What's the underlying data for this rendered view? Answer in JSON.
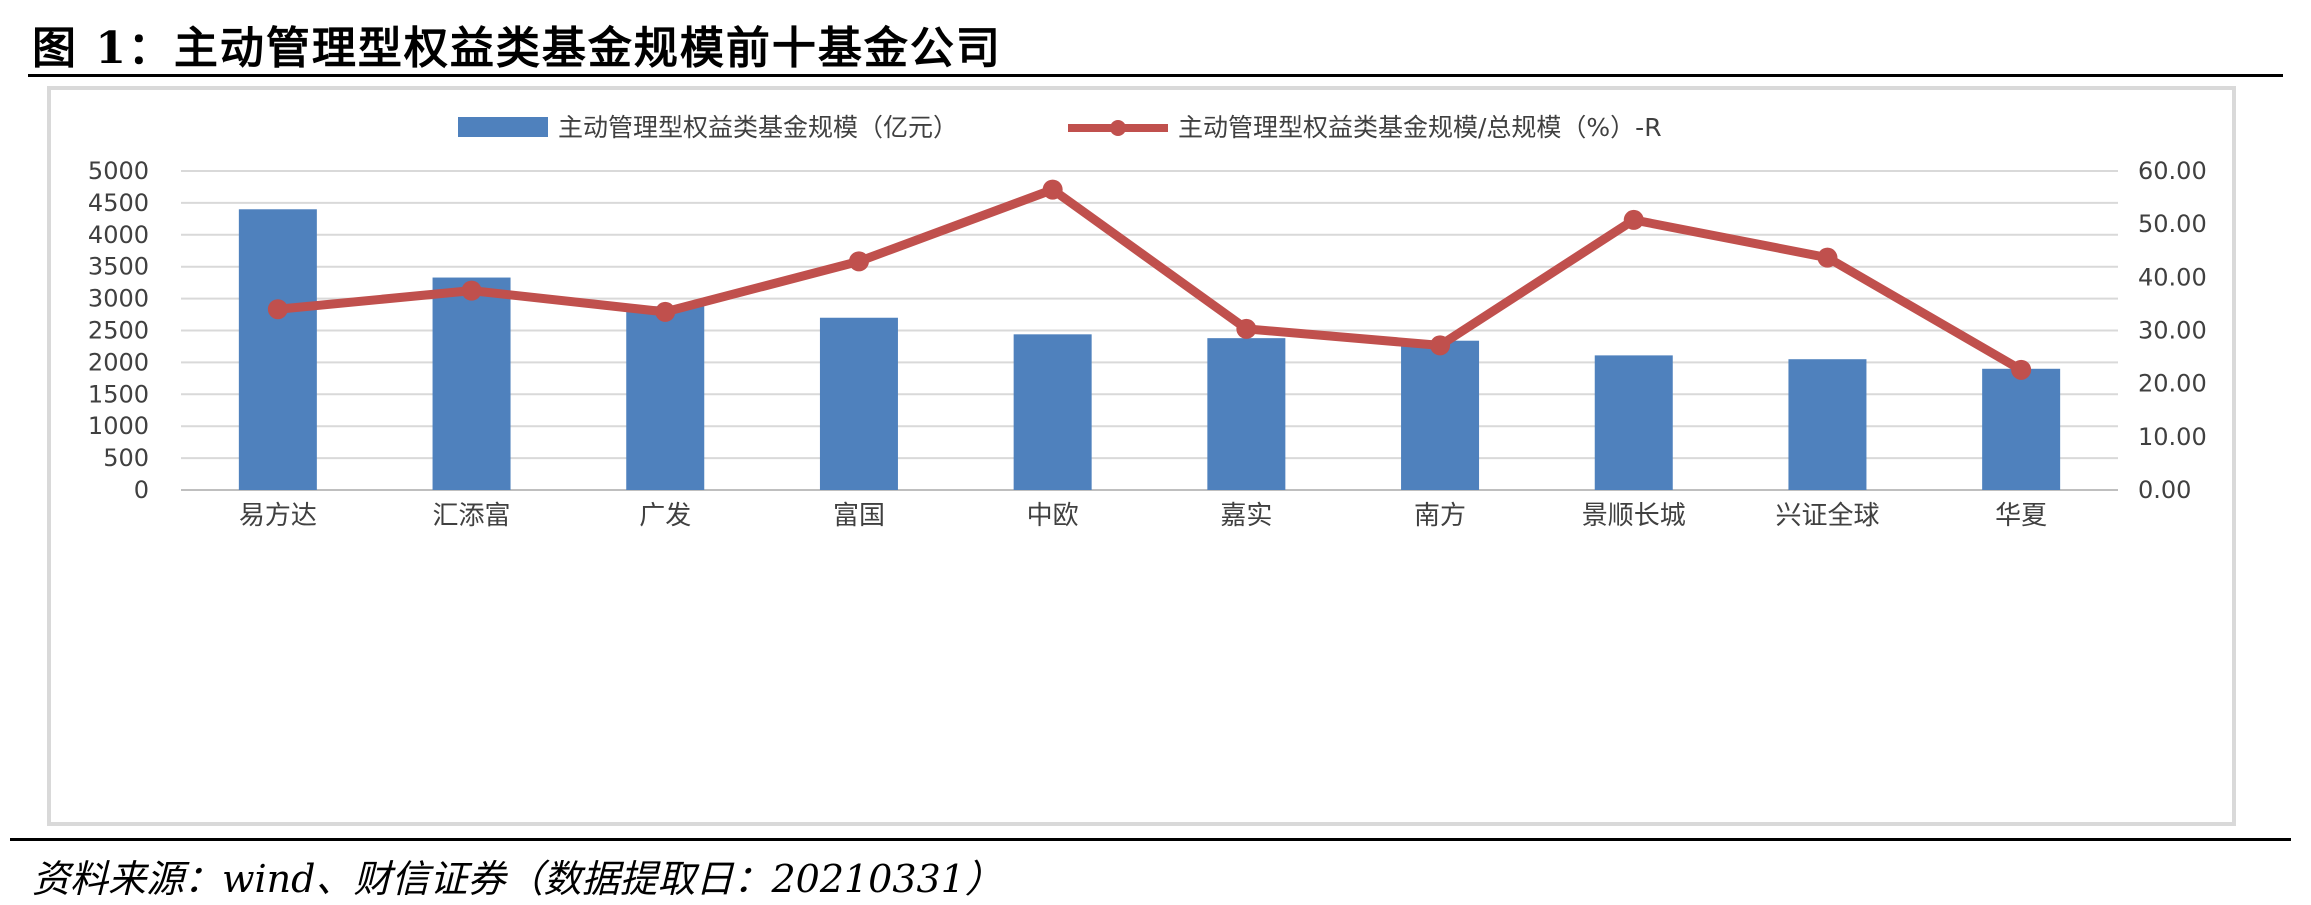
{
  "figure": {
    "title": "图 1：主动管理型权益类基金规模前十基金公司",
    "source": "资料来源：wind、财信证券（数据提取日：20210331）"
  },
  "chart_data": {
    "type": "bar",
    "categories": [
      "易方达",
      "汇添富",
      "广发",
      "富国",
      "中欧",
      "嘉实",
      "南方",
      "景顺长城",
      "兴证全球",
      "华夏"
    ],
    "series": [
      {
        "name": "主动管理型权益类基金规模（亿元）",
        "type": "bar",
        "axis": "left",
        "color": "#4f81bd",
        "values": [
          4400,
          3330,
          2880,
          2700,
          2440,
          2380,
          2340,
          2110,
          2050,
          1900
        ]
      },
      {
        "name": "主动管理型权益类基金规模/总规模（%）-R",
        "type": "line",
        "axis": "right",
        "color": "#c0504d",
        "values": [
          34.0,
          37.5,
          33.5,
          43.0,
          56.5,
          30.3,
          27.2,
          50.8,
          43.7,
          22.6
        ]
      }
    ],
    "y_left": {
      "range": [
        0,
        5000
      ],
      "step": 500,
      "ticks": [
        "0",
        "500",
        "1000",
        "1500",
        "2000",
        "2500",
        "3000",
        "3500",
        "4000",
        "4500",
        "5000"
      ]
    },
    "y_right": {
      "range": [
        0,
        60
      ],
      "step": 10,
      "ticks": [
        "0.00",
        "10.00",
        "20.00",
        "30.00",
        "40.00",
        "50.00",
        "60.00"
      ]
    },
    "grid": true,
    "legend": "top-center"
  }
}
